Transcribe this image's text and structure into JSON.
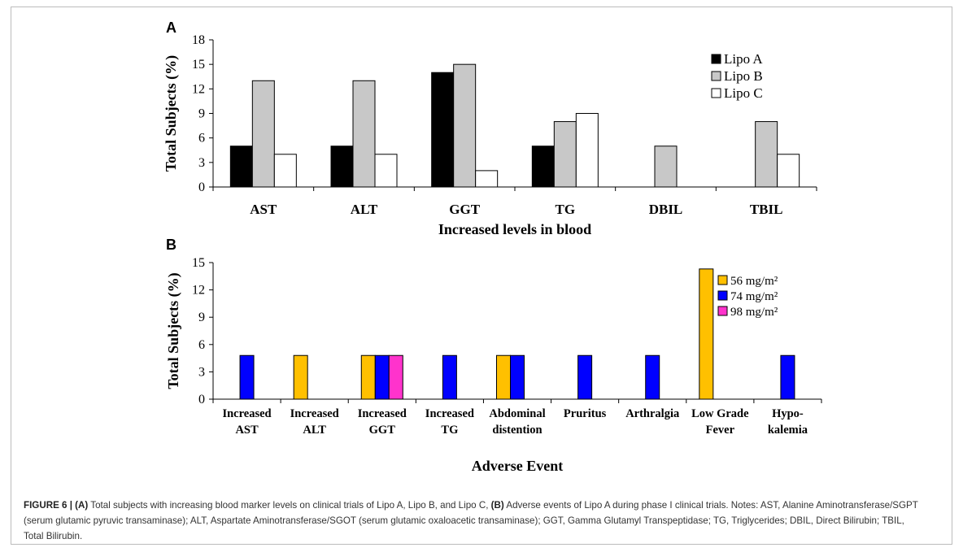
{
  "panel_a": {
    "letter": "A",
    "ylabel": "Total Subjects (%)",
    "xlabel": "Increased levels in blood"
  },
  "panel_b": {
    "letter": "B",
    "ylabel": "Total Subjects (%)",
    "xlabel": "Adverse Event"
  },
  "caption": {
    "label": "FIGURE 6 |",
    "part_a": "(A)",
    "text_a": " Total subjects with increasing blood marker levels on clinical trials of Lipo A, Lipo B, and Lipo C, ",
    "part_b": "(B)",
    "text_b": " Adverse events of Lipo A during phase I clinical trials. Notes: AST, Alanine Aminotransferase/SGPT (serum glutamic pyruvic transaminase); ALT, Aspartate Aminotransferase/SGOT (serum glutamic oxaloacetic transaminase); GGT, Gamma Glutamyl Transpeptidase; TG, Triglycerides; DBIL, Direct Bilirubin; TBIL, Total Bilirubin."
  },
  "chart_data": [
    {
      "type": "bar",
      "panel": "A",
      "categories": [
        "AST",
        "ALT",
        "GGT",
        "TG",
        "DBIL",
        "TBIL"
      ],
      "series": [
        {
          "name": "Lipo A",
          "color": "#000000",
          "values": [
            5,
            5,
            14,
            5,
            0,
            0
          ]
        },
        {
          "name": "Lipo B",
          "color": "#c8c8c8",
          "values": [
            13,
            13,
            15,
            8,
            5,
            8
          ]
        },
        {
          "name": "Lipo C",
          "color": "#ffffff",
          "values": [
            4,
            4,
            2,
            9,
            0,
            4
          ]
        }
      ],
      "ylabel": "Total Subjects (%)",
      "xlabel": "Increased levels in blood",
      "ylim": [
        0,
        18
      ],
      "yticks": [
        0,
        3,
        6,
        9,
        12,
        15,
        18
      ],
      "legend": "top-right"
    },
    {
      "type": "bar",
      "panel": "B",
      "categories": [
        [
          "Increased",
          "AST"
        ],
        [
          "Increased",
          "ALT"
        ],
        [
          "Increased",
          "GGT"
        ],
        [
          "Increased",
          "TG"
        ],
        [
          "Abdominal",
          "distention"
        ],
        [
          "Pruritus"
        ],
        [
          "Arthralgia"
        ],
        [
          "Low Grade",
          "Fever"
        ],
        [
          "Hypo-",
          "kalemia"
        ]
      ],
      "series": [
        {
          "name": "56 mg/m²",
          "color": "#ffc000",
          "values": [
            0,
            4.8,
            4.8,
            0,
            4.8,
            0,
            0,
            14.3,
            0
          ]
        },
        {
          "name": "74 mg/m²",
          "color": "#0000ff",
          "values": [
            4.8,
            0,
            4.8,
            4.8,
            4.8,
            4.8,
            4.8,
            0,
            4.8
          ]
        },
        {
          "name": "98 mg/m²",
          "color": "#ff33cc",
          "values": [
            0,
            0,
            4.8,
            0,
            0,
            0,
            0,
            0,
            0
          ]
        }
      ],
      "ylabel": "Total Subjects (%)",
      "xlabel": "Adverse Event",
      "ylim": [
        0,
        15
      ],
      "yticks": [
        0,
        3,
        6,
        9,
        12,
        15
      ],
      "legend": "top-right"
    }
  ]
}
